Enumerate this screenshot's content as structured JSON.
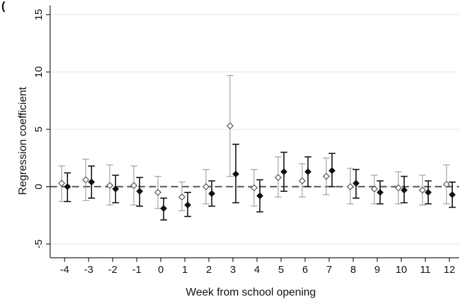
{
  "chart_data": {
    "type": "scatter",
    "panel_label": "(",
    "title": "",
    "xlabel": "Week from school opening",
    "ylabel": "Regression coefficient",
    "xlim": [
      -4.6,
      12.4
    ],
    "ylim": [
      -6.2,
      15.8
    ],
    "x_ticks": [
      -4,
      -3,
      -2,
      -1,
      0,
      1,
      2,
      3,
      4,
      5,
      6,
      7,
      8,
      9,
      10,
      11,
      12
    ],
    "y_ticks": [
      -5,
      0,
      5,
      10,
      15
    ],
    "reference_line": 0,
    "grid": "horizontal",
    "colors": {
      "series_a": "#9a9a9a",
      "series_b": "#111111",
      "grid": "#e6e6e6",
      "reference": "#444444"
    },
    "series": [
      {
        "marker": "hollow-diamond",
        "x_offset": -0.12,
        "points": [
          {
            "x": -4,
            "y": 0.3,
            "lo": -1.3,
            "hi": 1.8
          },
          {
            "x": -3,
            "y": 0.6,
            "lo": -1.2,
            "hi": 2.4
          },
          {
            "x": -2,
            "y": 0.1,
            "lo": -1.6,
            "hi": 1.9
          },
          {
            "x": -1,
            "y": 0.1,
            "lo": -1.6,
            "hi": 1.8
          },
          {
            "x": 0,
            "y": -0.5,
            "lo": -1.9,
            "hi": 0.9
          },
          {
            "x": 1,
            "y": -0.9,
            "lo": -2.1,
            "hi": 0.4
          },
          {
            "x": 2,
            "y": 0.0,
            "lo": -1.5,
            "hi": 1.5
          },
          {
            "x": 3,
            "y": 5.3,
            "lo": 0.9,
            "hi": 9.7
          },
          {
            "x": 4,
            "y": -0.1,
            "lo": -1.7,
            "hi": 1.5
          },
          {
            "x": 5,
            "y": 0.8,
            "lo": -0.9,
            "hi": 2.6
          },
          {
            "x": 6,
            "y": 0.5,
            "lo": -0.9,
            "hi": 2.0
          },
          {
            "x": 7,
            "y": 0.9,
            "lo": -0.7,
            "hi": 2.5
          },
          {
            "x": 8,
            "y": 0.0,
            "lo": -1.5,
            "hi": 1.6
          },
          {
            "x": 9,
            "y": -0.2,
            "lo": -1.5,
            "hi": 1.0
          },
          {
            "x": 10,
            "y": -0.1,
            "lo": -1.5,
            "hi": 1.3
          },
          {
            "x": 11,
            "y": -0.3,
            "lo": -1.6,
            "hi": 1.0
          },
          {
            "x": 12,
            "y": 0.2,
            "lo": -1.5,
            "hi": 1.9
          }
        ]
      },
      {
        "marker": "filled-diamond",
        "x_offset": 0.12,
        "points": [
          {
            "x": -4,
            "y": 0.0,
            "lo": -1.3,
            "hi": 1.2
          },
          {
            "x": -3,
            "y": 0.4,
            "lo": -1.0,
            "hi": 1.8
          },
          {
            "x": -2,
            "y": -0.2,
            "lo": -1.4,
            "hi": 1.0
          },
          {
            "x": -1,
            "y": -0.4,
            "lo": -1.7,
            "hi": 0.8
          },
          {
            "x": 0,
            "y": -1.9,
            "lo": -2.9,
            "hi": -1.0
          },
          {
            "x": 1,
            "y": -1.6,
            "lo": -2.6,
            "hi": -0.5
          },
          {
            "x": 2,
            "y": -0.6,
            "lo": -1.7,
            "hi": 0.5
          },
          {
            "x": 3,
            "y": 1.1,
            "lo": -1.4,
            "hi": 3.7
          },
          {
            "x": 4,
            "y": -0.8,
            "lo": -2.2,
            "hi": 0.6
          },
          {
            "x": 5,
            "y": 1.3,
            "lo": -0.4,
            "hi": 3.0
          },
          {
            "x": 6,
            "y": 1.3,
            "lo": 0.0,
            "hi": 2.6
          },
          {
            "x": 7,
            "y": 1.4,
            "lo": 0.0,
            "hi": 2.9
          },
          {
            "x": 8,
            "y": 0.3,
            "lo": -1.0,
            "hi": 1.5
          },
          {
            "x": 9,
            "y": -0.5,
            "lo": -1.5,
            "hi": 0.5
          },
          {
            "x": 10,
            "y": -0.3,
            "lo": -1.4,
            "hi": 0.9
          },
          {
            "x": 11,
            "y": -0.5,
            "lo": -1.5,
            "hi": 0.5
          },
          {
            "x": 12,
            "y": -0.7,
            "lo": -1.8,
            "hi": 0.4
          }
        ]
      }
    ]
  }
}
